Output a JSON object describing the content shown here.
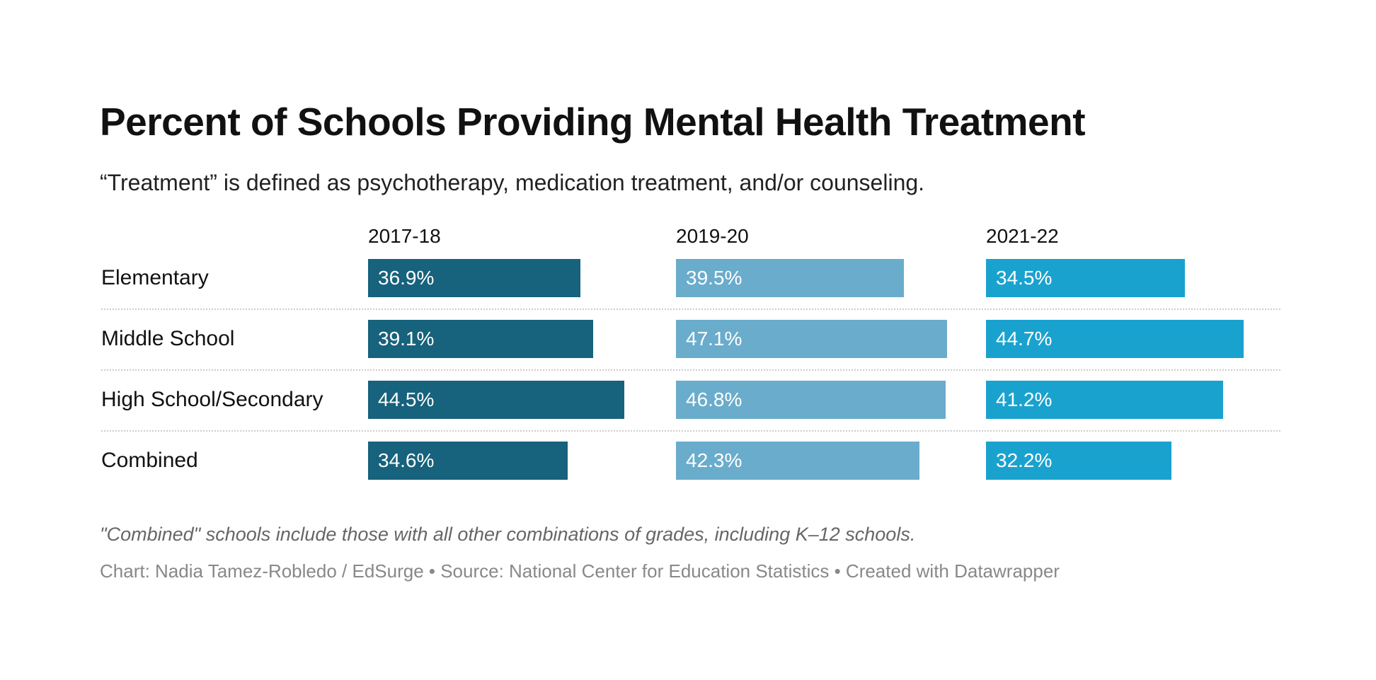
{
  "title": "Percent of Schools Providing Mental Health Treatment",
  "subtitle": "“Treatment” is defined as psychotherapy, medication treatment, and/or counseling.",
  "note": "\"Combined\" schools include those with all other combinations of grades, including K–12 schools.",
  "credit": "Chart: Nadia Tamez-Robledo / EdSurge • Source: National Center for Education Statistics • Created with Datawrapper",
  "chart_data": {
    "type": "bar",
    "orientation": "horizontal",
    "layout": "small-multiples",
    "categories": [
      "Elementary",
      "Middle School",
      "High School/Secondary",
      "Combined"
    ],
    "series": [
      {
        "name": "2017-18",
        "values": [
          36.9,
          39.1,
          44.5,
          34.6
        ],
        "color": "#17627c"
      },
      {
        "name": "2019-20",
        "values": [
          39.5,
          47.1,
          46.8,
          42.3
        ],
        "color": "#6aaccb"
      },
      {
        "name": "2021-22",
        "values": [
          34.5,
          44.7,
          41.2,
          32.2
        ],
        "color": "#1aa2cf"
      }
    ],
    "value_suffix": "%",
    "grid": false
  }
}
